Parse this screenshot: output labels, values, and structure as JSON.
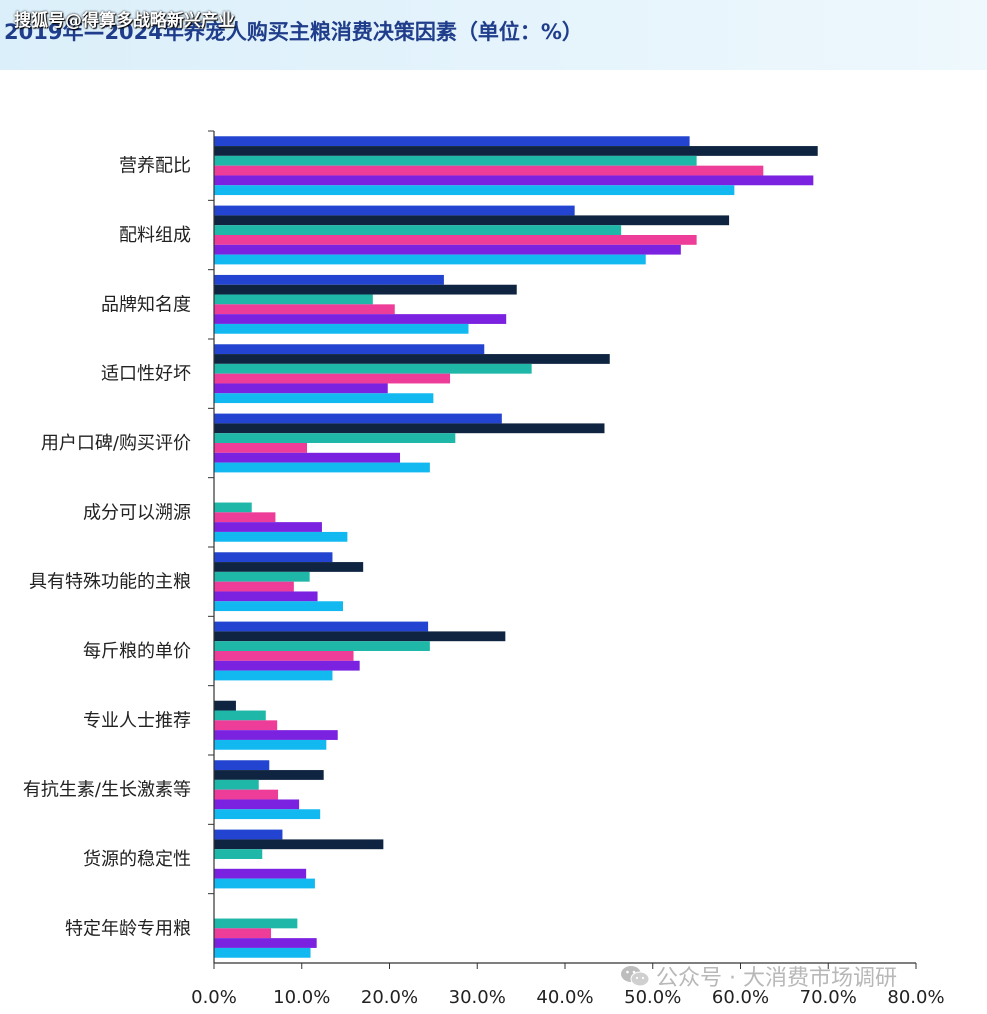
{
  "header": {
    "title": "2019年—2024年养宠人购买主粮消费决策因素（单位：%）",
    "watermark": "搜狐号@得算多战略新兴产业"
  },
  "footer": {
    "watermark": "公众号 · 大消费市场调研",
    "wechat_icon": "wechat-icon"
  },
  "chart_data": {
    "type": "bar",
    "orientation": "horizontal",
    "title": "2019年—2024年养宠人购买主粮消费决策因素（单位：%）",
    "xlim": [
      0,
      80
    ],
    "x_ticks": [
      "0.0%",
      "10.0%",
      "20.0%",
      "30.0%",
      "40.0%",
      "50.0%",
      "60.0%",
      "70.0%",
      "80.0%"
    ],
    "grid": false,
    "legend": "none",
    "categories": [
      "营养配比",
      "配料组成",
      "品牌知名度",
      "适口性好坏",
      "用户口碑/购买评价",
      "成分可以溯源",
      "具有特殊功能的主粮",
      "每斤粮的单价",
      "专业人士推荐",
      "有抗生素/生长激素等",
      "货源的稳定性",
      "特定年龄专用粮"
    ],
    "series": [
      {
        "color": "#2244d0",
        "values": [
          54.2,
          41.1,
          26.2,
          30.8,
          32.8,
          null,
          13.5,
          24.4,
          null,
          6.3,
          7.8,
          null
        ]
      },
      {
        "color": "#0f2440",
        "values": [
          68.8,
          58.7,
          34.5,
          45.1,
          44.5,
          null,
          17.0,
          33.2,
          2.5,
          12.5,
          19.3,
          null
        ]
      },
      {
        "color": "#1fb8a8",
        "values": [
          55.0,
          46.4,
          18.1,
          36.2,
          27.5,
          4.3,
          10.9,
          24.6,
          5.9,
          5.1,
          5.5,
          9.5
        ]
      },
      {
        "color": "#ee3d98",
        "values": [
          62.6,
          55.0,
          20.6,
          26.9,
          10.6,
          7.0,
          9.1,
          15.9,
          7.2,
          7.3,
          null,
          6.5
        ]
      },
      {
        "color": "#7a22e0",
        "values": [
          68.3,
          53.2,
          33.3,
          19.8,
          21.2,
          12.3,
          11.8,
          16.6,
          14.1,
          9.7,
          10.5,
          11.7
        ]
      },
      {
        "color": "#12b8f0",
        "values": [
          59.3,
          49.2,
          29.0,
          25.0,
          24.6,
          15.2,
          14.7,
          13.5,
          12.8,
          12.1,
          11.5,
          11.0
        ]
      }
    ]
  }
}
